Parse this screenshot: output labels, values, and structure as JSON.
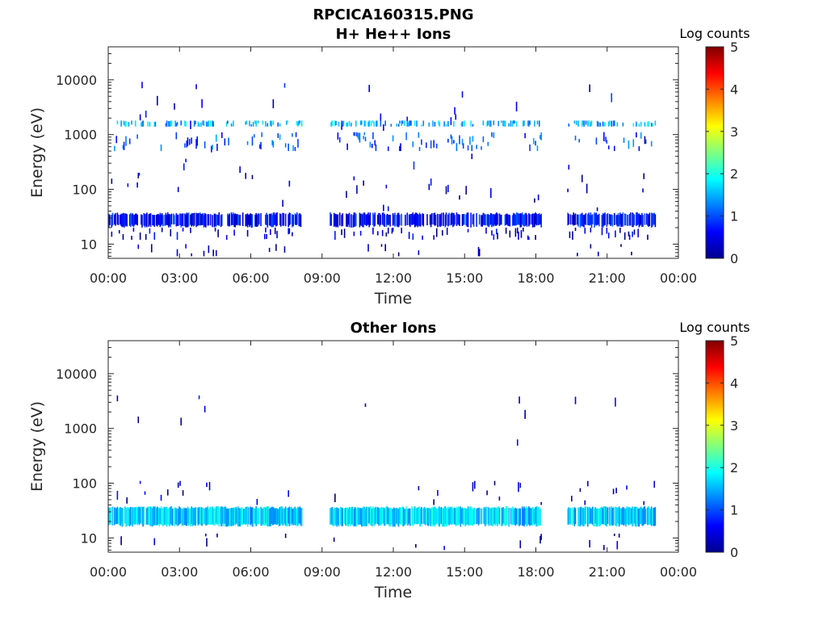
{
  "figure_title": "RPCICA160315.PNG",
  "chart_data": [
    {
      "type": "heatmap",
      "title": "H+ He++ Ions",
      "xlabel": "Time",
      "ylabel": "Energy (eV)",
      "x_ticks": [
        "00:00",
        "03:00",
        "06:00",
        "09:00",
        "12:00",
        "15:00",
        "18:00",
        "21:00",
        "00:00"
      ],
      "y_ticks": [
        "10",
        "100",
        "1000",
        "10000"
      ],
      "y_scale": "log",
      "ylim": [
        5.5,
        40000
      ],
      "xlim_hours": [
        0,
        24
      ],
      "colorbar": {
        "label": "Log counts",
        "ticks": [
          "0",
          "1",
          "2",
          "3",
          "4",
          "5"
        ],
        "range": [
          0,
          5
        ],
        "colormap": "jet"
      },
      "data_gaps_hours": [
        [
          8.15,
          9.3
        ],
        [
          18.2,
          19.3
        ],
        [
          23.0,
          24.0
        ]
      ],
      "bands": [
        {
          "energy_range_eV": [
            20,
            38
          ],
          "level": 0.6,
          "density": 0.75
        },
        {
          "energy_range_eV": [
            12,
            20
          ],
          "level": 0.3,
          "density": 0.18
        },
        {
          "energy_range_eV": [
            6,
            10
          ],
          "level": 0.1,
          "density": 0.06
        },
        {
          "energy_range_eV": [
            40,
            200
          ],
          "level": 0.3,
          "density": 0.05
        },
        {
          "energy_range_eV": [
            200,
            10000
          ],
          "level": 0.5,
          "density": 0.05
        },
        {
          "energy_range_eV": [
            1400,
            1800
          ],
          "level": 1.4,
          "density": 0.35
        },
        {
          "energy_range_eV": [
            500,
            1100
          ],
          "level": 1.0,
          "density": 0.2
        }
      ],
      "grid": false
    },
    {
      "type": "heatmap",
      "title": "Other Ions",
      "xlabel": "Time",
      "ylabel": "Energy (eV)",
      "x_ticks": [
        "00:00",
        "03:00",
        "06:00",
        "09:00",
        "12:00",
        "15:00",
        "18:00",
        "21:00",
        "00:00"
      ],
      "y_ticks": [
        "10",
        "100",
        "1000",
        "10000"
      ],
      "y_scale": "log",
      "ylim": [
        5.5,
        40000
      ],
      "xlim_hours": [
        0,
        24
      ],
      "colorbar": {
        "label": "Log counts",
        "ticks": [
          "0",
          "1",
          "2",
          "3",
          "4",
          "5"
        ],
        "range": [
          0,
          5
        ],
        "colormap": "jet"
      },
      "data_gaps_hours": [
        [
          8.15,
          9.3
        ],
        [
          18.2,
          19.3
        ],
        [
          23.0,
          24.0
        ]
      ],
      "bands": [
        {
          "energy_range_eV": [
            16,
            38
          ],
          "level": 1.6,
          "density": 0.95
        },
        {
          "energy_range_eV": [
            40,
            110
          ],
          "level": 0.3,
          "density": 0.05
        },
        {
          "energy_range_eV": [
            6,
            12
          ],
          "level": 0.1,
          "density": 0.05
        },
        {
          "energy_range_eV": [
            200,
            4000
          ],
          "level": 0.3,
          "density": 0.02
        }
      ],
      "grid": false
    }
  ]
}
